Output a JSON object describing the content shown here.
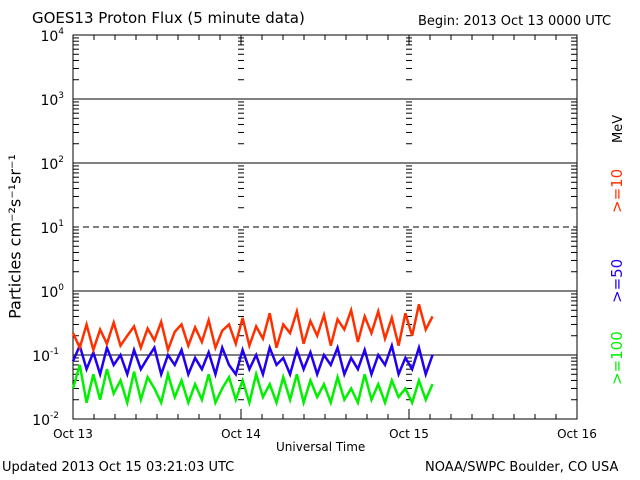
{
  "chart_data": {
    "type": "line",
    "title": "GOES13 Proton Flux (5 minute data)",
    "begin_label": "Begin: 2013 Oct 13 0000 UTC",
    "xlabel": "Universal Time",
    "ylabel": "Particles cm⁻²s⁻¹sr⁻¹",
    "yscale": "log",
    "ylim": [
      0.01,
      10000
    ],
    "y_ticks": [
      {
        "base": "10",
        "exp": "4",
        "v": 10000
      },
      {
        "base": "10",
        "exp": "3",
        "v": 1000
      },
      {
        "base": "10",
        "exp": "2",
        "v": 100
      },
      {
        "base": "10",
        "exp": "1",
        "v": 10
      },
      {
        "base": "10",
        "exp": "0",
        "v": 1
      },
      {
        "base": "10",
        "exp": "-1",
        "v": 0.1
      },
      {
        "base": "10",
        "exp": "-2",
        "v": 0.01
      }
    ],
    "x_ticks": [
      {
        "label": "Oct 13",
        "day": 0
      },
      {
        "label": "Oct 14",
        "day": 1
      },
      {
        "label": "Oct 15",
        "day": 2
      },
      {
        "label": "Oct 16",
        "day": 3
      }
    ],
    "xlim_days": [
      0,
      3
    ],
    "x_step_hours": 1,
    "threshold_line": 10,
    "grid_lines": [
      1000,
      100,
      1,
      0.1
    ],
    "unit_label": "MeV",
    "series": [
      {
        "name": ">=10",
        "color": "#ff3000",
        "values": [
          0.22,
          0.13,
          0.3,
          0.12,
          0.25,
          0.15,
          0.32,
          0.14,
          0.2,
          0.28,
          0.13,
          0.26,
          0.17,
          0.33,
          0.12,
          0.23,
          0.3,
          0.14,
          0.27,
          0.16,
          0.35,
          0.13,
          0.24,
          0.3,
          0.15,
          0.38,
          0.14,
          0.28,
          0.18,
          0.45,
          0.13,
          0.3,
          0.22,
          0.48,
          0.15,
          0.34,
          0.2,
          0.42,
          0.14,
          0.36,
          0.25,
          0.5,
          0.16,
          0.4,
          0.22,
          0.48,
          0.18,
          0.38,
          0.14,
          0.45,
          0.2,
          0.62,
          0.25,
          0.4
        ]
      },
      {
        "name": ">=50",
        "color": "#2000f0",
        "values": [
          0.08,
          0.14,
          0.06,
          0.11,
          0.05,
          0.13,
          0.07,
          0.1,
          0.05,
          0.12,
          0.06,
          0.09,
          0.13,
          0.05,
          0.1,
          0.07,
          0.12,
          0.05,
          0.09,
          0.06,
          0.11,
          0.05,
          0.13,
          0.07,
          0.05,
          0.12,
          0.06,
          0.1,
          0.05,
          0.13,
          0.07,
          0.09,
          0.05,
          0.12,
          0.06,
          0.11,
          0.05,
          0.1,
          0.07,
          0.13,
          0.05,
          0.09,
          0.06,
          0.12,
          0.05,
          0.1,
          0.07,
          0.14,
          0.05,
          0.09,
          0.06,
          0.13,
          0.05,
          0.1
        ]
      },
      {
        "name": ">=100",
        "color": "#00f000",
        "values": [
          0.03,
          0.07,
          0.018,
          0.05,
          0.02,
          0.06,
          0.025,
          0.04,
          0.018,
          0.055,
          0.02,
          0.045,
          0.03,
          0.018,
          0.05,
          0.022,
          0.04,
          0.018,
          0.035,
          0.02,
          0.05,
          0.018,
          0.03,
          0.045,
          0.02,
          0.04,
          0.018,
          0.05,
          0.022,
          0.035,
          0.018,
          0.045,
          0.02,
          0.05,
          0.018,
          0.04,
          0.022,
          0.035,
          0.018,
          0.045,
          0.02,
          0.03,
          0.018,
          0.05,
          0.02,
          0.035,
          0.018,
          0.04,
          0.022,
          0.03,
          0.018,
          0.04,
          0.02,
          0.035
        ]
      }
    ]
  },
  "footer": {
    "updated": "Updated 2013 Oct 15 03:21:03 UTC",
    "credit": "NOAA/SWPC Boulder, CO USA"
  }
}
